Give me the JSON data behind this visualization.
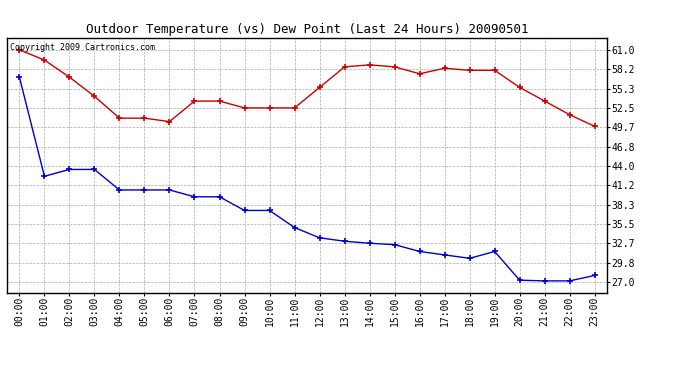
{
  "title": "Outdoor Temperature (vs) Dew Point (Last 24 Hours) 20090501",
  "copyright": "Copyright 2009 Cartronics.com",
  "x_labels": [
    "00:00",
    "01:00",
    "02:00",
    "03:00",
    "04:00",
    "05:00",
    "06:00",
    "07:00",
    "08:00",
    "09:00",
    "10:00",
    "11:00",
    "12:00",
    "13:00",
    "14:00",
    "15:00",
    "16:00",
    "17:00",
    "18:00",
    "19:00",
    "20:00",
    "21:00",
    "22:00",
    "23:00"
  ],
  "temp_data": [
    61.0,
    59.5,
    57.0,
    54.2,
    51.0,
    51.0,
    50.5,
    53.5,
    53.5,
    52.5,
    52.5,
    52.5,
    55.5,
    58.5,
    58.8,
    58.5,
    57.5,
    58.3,
    58.0,
    58.0,
    55.5,
    53.5,
    51.5,
    49.8
  ],
  "dew_data": [
    57.0,
    42.5,
    43.5,
    43.5,
    40.5,
    40.5,
    40.5,
    39.5,
    39.5,
    37.5,
    37.5,
    35.0,
    33.5,
    33.0,
    32.7,
    32.5,
    31.5,
    31.0,
    30.5,
    31.5,
    27.3,
    27.2,
    27.2,
    28.0
  ],
  "temp_color": "#cc0000",
  "dew_color": "#0000cc",
  "yticks": [
    27.0,
    29.8,
    32.7,
    35.5,
    38.3,
    41.2,
    44.0,
    46.8,
    49.7,
    52.5,
    55.3,
    58.2,
    61.0
  ],
  "ymin": 25.5,
  "ymax": 62.8,
  "bg_color": "#ffffff",
  "grid_color": "#aaaaaa",
  "title_fontsize": 9,
  "copyright_fontsize": 6,
  "tick_fontsize": 7,
  "marker_size": 4,
  "linewidth": 1.0
}
